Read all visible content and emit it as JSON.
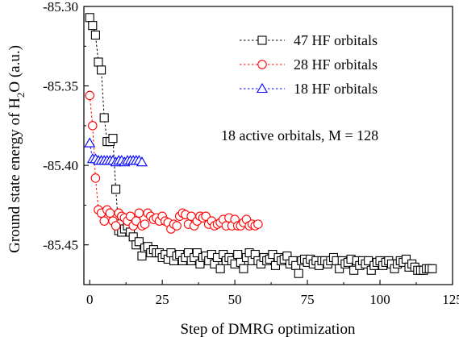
{
  "chart_data": {
    "type": "scatter",
    "xlabel": "Step of DMRG optimization",
    "ylabel_parts": {
      "pre": "Ground state energy of H",
      "sub": "2",
      "post": "O (a.u.)"
    },
    "xlim": [
      -2,
      125
    ],
    "ylim": [
      -85.475,
      -85.3
    ],
    "x_ticks": [
      0,
      25,
      50,
      75,
      100,
      125
    ],
    "x_tick_labels": [
      "0",
      "25",
      "50",
      "75",
      "100",
      "125"
    ],
    "y_ticks": [
      -85.3,
      -85.35,
      -85.4,
      -85.45
    ],
    "y_tick_labels": [
      "-85.30",
      "-85.35",
      "-85.40",
      "-85.45"
    ],
    "annotation": "18 active orbitals, M = 128",
    "legend_position": "top-right",
    "series": [
      {
        "name": "47 HF orbitals",
        "marker": "square",
        "color": "#000000",
        "dashed_connector_steps": 19,
        "x": [
          0,
          1,
          2,
          3,
          4,
          5,
          6,
          7,
          8,
          9,
          10,
          11,
          12,
          13,
          14,
          15,
          16,
          17,
          18,
          19,
          20,
          21,
          22,
          23,
          24,
          25,
          26,
          27,
          28,
          29,
          30,
          31,
          32,
          33,
          34,
          35,
          36,
          37,
          38,
          39,
          40,
          41,
          42,
          43,
          44,
          45,
          46,
          47,
          48,
          49,
          50,
          51,
          52,
          53,
          54,
          55,
          56,
          57,
          58,
          59,
          60,
          61,
          62,
          63,
          64,
          65,
          66,
          67,
          68,
          69,
          70,
          71,
          72,
          73,
          74,
          75,
          76,
          77,
          78,
          79,
          80,
          81,
          82,
          83,
          84,
          85,
          86,
          87,
          88,
          89,
          90,
          91,
          92,
          93,
          94,
          95,
          96,
          97,
          98,
          99,
          100,
          101,
          102,
          103,
          104,
          105,
          106,
          107,
          108,
          109,
          110,
          111,
          112,
          113,
          114,
          115,
          116,
          117,
          118
        ],
        "y": [
          -85.307,
          -85.312,
          -85.318,
          -85.335,
          -85.34,
          -85.37,
          -85.385,
          -85.385,
          -85.383,
          -85.415,
          -85.441,
          -85.442,
          -85.44,
          -85.438,
          -85.442,
          -85.445,
          -85.45,
          -85.448,
          -85.457,
          -85.452,
          -85.451,
          -85.455,
          -85.453,
          -85.455,
          -85.455,
          -85.458,
          -85.456,
          -85.459,
          -85.455,
          -85.46,
          -85.457,
          -85.456,
          -85.46,
          -85.458,
          -85.455,
          -85.46,
          -85.458,
          -85.455,
          -85.462,
          -85.458,
          -85.457,
          -85.46,
          -85.456,
          -85.462,
          -85.458,
          -85.465,
          -85.456,
          -85.46,
          -85.458,
          -85.46,
          -85.462,
          -85.456,
          -85.461,
          -85.465,
          -85.458,
          -85.455,
          -85.46,
          -85.456,
          -85.46,
          -85.462,
          -85.458,
          -85.46,
          -85.459,
          -85.456,
          -85.463,
          -85.458,
          -85.46,
          -85.459,
          -85.457,
          -85.462,
          -85.46,
          -85.463,
          -85.468,
          -85.46,
          -85.459,
          -85.461,
          -85.459,
          -85.462,
          -85.46,
          -85.463,
          -85.46,
          -85.46,
          -85.462,
          -85.46,
          -85.458,
          -85.46,
          -85.465,
          -85.46,
          -85.462,
          -85.461,
          -85.459,
          -85.466,
          -85.46,
          -85.463,
          -85.46,
          -85.462,
          -85.46,
          -85.466,
          -85.463,
          -85.461,
          -85.46,
          -85.463,
          -85.461,
          -85.46,
          -85.462,
          -85.465,
          -85.462,
          -85.46,
          -85.461,
          -85.459,
          -85.464,
          -85.462,
          -85.464,
          -85.466,
          -85.466,
          -85.466,
          -85.465,
          -85.465,
          -85.465
        ]
      },
      {
        "name": "28 HF orbitals",
        "marker": "circle",
        "color": "#ff0000",
        "dashed_connector_steps": 19,
        "x": [
          0,
          1,
          2,
          3,
          4,
          5,
          6,
          7,
          8,
          9,
          10,
          11,
          12,
          13,
          14,
          15,
          16,
          17,
          18,
          19,
          20,
          21,
          22,
          23,
          24,
          25,
          26,
          27,
          28,
          29,
          30,
          31,
          32,
          33,
          34,
          35,
          36,
          37,
          38,
          39,
          40,
          41,
          42,
          43,
          44,
          45,
          46,
          47,
          48,
          49,
          50,
          51,
          52,
          53,
          54,
          55,
          56,
          57,
          58
        ],
        "y": [
          -85.356,
          -85.375,
          -85.408,
          -85.428,
          -85.43,
          -85.435,
          -85.428,
          -85.43,
          -85.435,
          -85.438,
          -85.43,
          -85.432,
          -85.433,
          -85.435,
          -85.432,
          -85.438,
          -85.435,
          -85.43,
          -85.438,
          -85.437,
          -85.43,
          -85.432,
          -85.434,
          -85.433,
          -85.435,
          -85.432,
          -85.435,
          -85.436,
          -85.44,
          -85.437,
          -85.438,
          -85.432,
          -85.43,
          -85.431,
          -85.437,
          -85.432,
          -85.438,
          -85.435,
          -85.432,
          -85.433,
          -85.432,
          -85.437,
          -85.435,
          -85.438,
          -85.437,
          -85.436,
          -85.434,
          -85.438,
          -85.433,
          -85.438,
          -85.434,
          -85.438,
          -85.438,
          -85.436,
          -85.434,
          -85.438,
          -85.437,
          -85.438,
          -85.437
        ]
      },
      {
        "name": "18 HF orbitals",
        "marker": "triangle",
        "color": "#0000ff",
        "dashed_connector_steps": 19,
        "x": [
          0,
          1,
          2,
          3,
          4,
          5,
          6,
          7,
          8,
          9,
          10,
          11,
          12,
          13,
          14,
          15,
          16,
          17,
          18
        ],
        "y": [
          -85.386,
          -85.396,
          -85.396,
          -85.397,
          -85.397,
          -85.397,
          -85.397,
          -85.397,
          -85.397,
          -85.398,
          -85.397,
          -85.397,
          -85.398,
          -85.397,
          -85.397,
          -85.397,
          -85.397,
          -85.397,
          -85.398
        ]
      }
    ]
  }
}
